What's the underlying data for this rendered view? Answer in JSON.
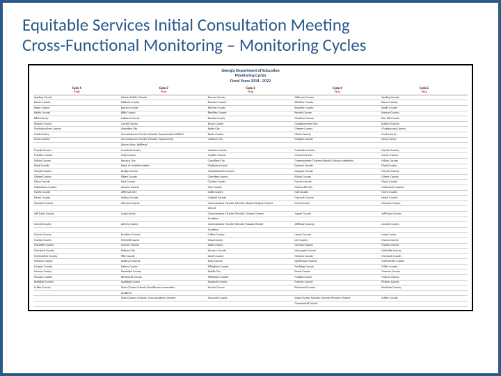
{
  "title_line1": "Equitable Services Initial Consultation Meeting",
  "title_line2": "Cross-Functional Monitoring – Monitoring Cycles",
  "doc_header": {
    "org": "Georgia Department of Education",
    "sub": "Monitoring Cycles",
    "years": "Fiscal Years 2018 - 2022"
  },
  "columns": [
    {
      "label": "Cycle 1",
      "fy": "FY18"
    },
    {
      "label": "Cycle 2",
      "fy": "FY19"
    },
    {
      "label": "Cycle 3",
      "fy": "FY20"
    },
    {
      "label": "Cycle 4",
      "fy": "FY21"
    },
    {
      "label": "Cycle 5",
      "fy": "FY22"
    }
  ],
  "rows": [
    [
      "Appling County",
      "Atlanta Public Schools",
      "Barrow County",
      "Atkinson County",
      "Appling County"
    ],
    [
      "Bacon County",
      "Baldwin County",
      "Bartram County",
      "Bleckley County",
      "Bacon County"
    ],
    [
      "Baker County",
      "Barrow County",
      "Berrien County",
      "Brantley County",
      "Banks County"
    ],
    [
      "Banks County",
      "Bibb County",
      "Bleckley County",
      "Brooks County",
      "Bartow County"
    ],
    [
      "Bibb County",
      "Calhoun County",
      "Brooks County",
      "Charlton County",
      "Ben Hill County"
    ],
    [
      "Bulloch County",
      "Carroll County",
      "Bryan County",
      "Chattahoochee City",
      "Bulloch County"
    ],
    [
      "Chattahoochee County",
      "Cherokee City",
      "Burke City",
      "Chester County",
      "Chattanooga County"
    ],
    [
      "Cook County",
      "Commissioner Charter Schools: QuantumArts STEAM",
      "Burke County",
      "Clinch County",
      "Cook County"
    ],
    [
      "Evans County",
      "Commissioner Charter Schools: Empowering",
      "Calhoun City",
      "Colquitt County",
      "Early County"
    ],
    [
      "",
      "District Misc. Bullhead",
      "",
      "",
      ""
    ],
    [
      "Fayette County",
      "Crawford County",
      "Camden County",
      "Columbia County",
      "Fayette County"
    ],
    [
      "Franklin County",
      "Crisp County",
      "Candler County",
      "Commerce City",
      "Fannin County"
    ],
    [
      "Fulton County",
      "Decatur City",
      "Carrollton City",
      "Commissioner Charter Schools: Fulton Leadership",
      "Fulton County"
    ],
    [
      "Floyd County",
      "Dept. of Juvenile Justice",
      "Chatham County",
      "Dawson County",
      "Floyd County"
    ],
    [
      "Forsyth County",
      "Dodge County",
      "Chattahoochee County",
      "Douglas County",
      "Forsyth County"
    ],
    [
      "Gilmer County",
      "Elbert County",
      "Cherokee County",
      "Echols County",
      "Gilmer County"
    ],
    [
      "Glynn County",
      "Hart County",
      "Clayton County",
      "Fannin County",
      "Glynn County"
    ],
    [
      "Habersham County",
      "Jackson County",
      "Clay County",
      "Gainesville City",
      "Habersham County"
    ],
    [
      "Harris County",
      "Jefferson City",
      "Cobb County",
      "Hall County",
      "Harris County"
    ],
    [
      "Henry County",
      "Jenkins County",
      "Colquitt County",
      "Hancock County",
      "Henry County"
    ],
    [
      "Houston County",
      "Johnson County",
      "Commissioner Charter Schools: Atlanta Heights Charter",
      "Irwin County",
      "Houston County"
    ],
    [
      "",
      "",
      "School",
      "",
      ""
    ],
    [
      "Jeff Davis County",
      "Long County",
      "Commissioner Charter Schools: Coweta Charter",
      "Jasper County",
      "Jeff Davis County"
    ],
    [
      "",
      "",
      "Academy",
      "",
      ""
    ],
    [
      "Lincoln County",
      "Liberty County",
      "Commissioner Charter Schools: Pataula Charter",
      "Jefferson County",
      "Lincoln County"
    ],
    [
      "",
      "",
      "Academy",
      "",
      ""
    ],
    [
      "Macon County",
      "Madison County",
      "Coffee County",
      "Lamar County",
      "Long County"
    ],
    [
      "Marion County",
      "Mitchell County",
      "Crisp County",
      "Lee County",
      "Macon County"
    ],
    [
      "McDuffie County",
      "Oconee County",
      "Dade County",
      "Morgan County",
      "Marion County"
    ],
    [
      "McIntosh County",
      "Pelham City",
      "Decatur County",
      "Muscogee County",
      "McDuffie County"
    ],
    [
      "Meriwether County",
      "Pike County",
      "Dooly County",
      "Newton County",
      "McIntosh County"
    ],
    [
      "Monroe County",
      "Quitman County",
      "Early County",
      "Oglethorpe County",
      "Meriwether County"
    ],
    [
      "Morgan County",
      "Rabun County",
      "Effingham County",
      "Paulding County",
      "Miller County"
    ],
    [
      "Murray County",
      "Randolph County",
      "Dublin City",
      "Peach County",
      "Monroe County"
    ],
    [
      "Putnam County",
      "Richmond County",
      "Effingham County",
      "Pulaski County",
      "Murray County"
    ],
    [
      "Rockdale County",
      "Spalding County",
      "Emanuel County",
      "Putnam County",
      "Pickens County"
    ],
    [
      "Schley County",
      "State Charter Schools: Brookhaven Innovation",
      "Fannin County",
      "Richmond County",
      "Rockdale County"
    ],
    [
      "",
      "Academy",
      "",
      "",
      ""
    ],
    [
      "",
      "State Charter Schools: Cirrus Academy Charter",
      "Glascock County",
      "State Charter Schools: Genesis Premier Charter",
      "Schley County"
    ],
    [
      "",
      "",
      "",
      "Chesterfield School",
      ""
    ]
  ],
  "colors": {
    "border": "#2a5a8a",
    "title": "#2a5a8a",
    "fy": "#c00000",
    "table_border": "#000000",
    "grid": "#cccccc"
  }
}
